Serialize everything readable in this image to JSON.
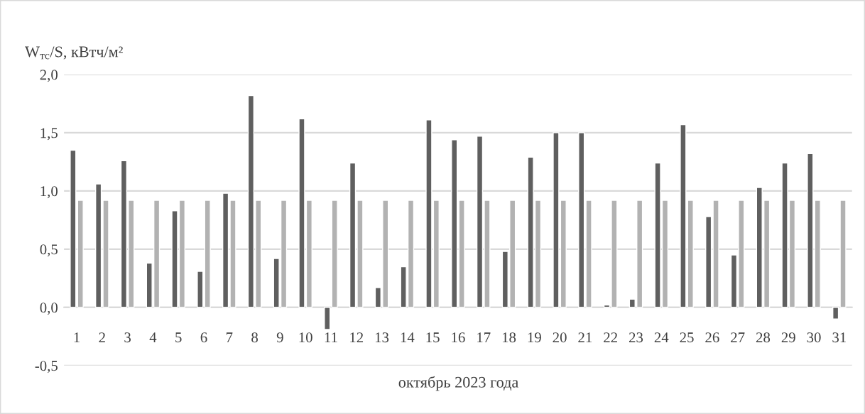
{
  "chart_data": {
    "type": "bar",
    "ylabel": "W$_{тс}$/S, кВтч/м²",
    "xlabel": "октябрь 2023 года",
    "categories": [
      "1",
      "2",
      "3",
      "4",
      "5",
      "6",
      "7",
      "8",
      "9",
      "10",
      "11",
      "12",
      "13",
      "14",
      "15",
      "16",
      "17",
      "18",
      "19",
      "20",
      "21",
      "22",
      "23",
      "24",
      "25",
      "26",
      "27",
      "28",
      "29",
      "30",
      "31"
    ],
    "series": [
      {
        "color": "#5f5f5f",
        "values": [
          1.35,
          1.06,
          1.26,
          0.38,
          0.83,
          0.31,
          0.98,
          1.82,
          0.42,
          1.62,
          -0.19,
          1.24,
          0.17,
          0.35,
          1.61,
          1.44,
          1.47,
          0.48,
          1.29,
          1.5,
          1.5,
          0.02,
          0.07,
          1.24,
          1.57,
          0.78,
          0.45,
          1.03,
          1.24,
          1.32,
          -0.1
        ]
      },
      {
        "color": "#b2b2b2",
        "values": [
          0.92,
          0.92,
          0.92,
          0.92,
          0.92,
          0.92,
          0.92,
          0.92,
          0.92,
          0.92,
          0.92,
          0.92,
          0.92,
          0.92,
          0.92,
          0.92,
          0.92,
          0.92,
          0.92,
          0.92,
          0.92,
          0.92,
          0.92,
          0.92,
          0.92,
          0.92,
          0.92,
          0.92,
          0.92,
          0.92,
          0.92
        ]
      }
    ],
    "ylim": [
      -0.5,
      2.0
    ],
    "yticks": [
      {
        "value": -0.5,
        "label": "-0,5"
      },
      {
        "value": 0.0,
        "label": "0,0"
      },
      {
        "value": 0.5,
        "label": "0,5"
      },
      {
        "value": 1.0,
        "label": "1,0"
      },
      {
        "value": 1.5,
        "label": "1,5"
      },
      {
        "value": 2.0,
        "label": "2,0"
      }
    ],
    "grid": "y",
    "legend": false
  }
}
